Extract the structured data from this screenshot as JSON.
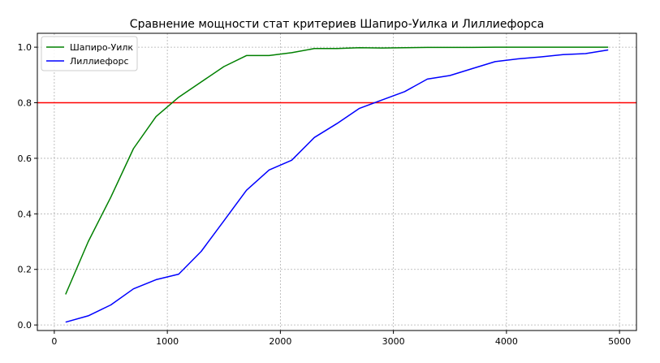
{
  "chart_data": {
    "type": "line",
    "title": "Сравнение мощности стат критериев Шапиро-Уилка и Лиллиефорса",
    "xlabel": "",
    "ylabel": "",
    "xlim": [
      -150,
      5150
    ],
    "ylim": [
      -0.02,
      1.05
    ],
    "x_ticks": [
      0,
      1000,
      2000,
      3000,
      4000,
      5000
    ],
    "y_ticks": [
      0.0,
      0.2,
      0.4,
      0.6,
      0.8,
      1.0
    ],
    "y_tick_labels": [
      "0.0",
      "0.2",
      "0.4",
      "0.6",
      "0.8",
      "1.0"
    ],
    "grid": true,
    "legend_position": "top-left",
    "series": [
      {
        "name": "Шапиро-Уилк",
        "color": "#008000",
        "x": [
          100,
          300,
          500,
          700,
          900,
          1100,
          1300,
          1500,
          1700,
          1900,
          2100,
          2300,
          2500,
          2700,
          2900,
          3100,
          3300,
          3500,
          3700,
          3900,
          4100,
          4300,
          4500,
          4700,
          4900
        ],
        "y": [
          0.11,
          0.3,
          0.46,
          0.635,
          0.75,
          0.82,
          0.875,
          0.93,
          0.97,
          0.97,
          0.98,
          0.995,
          0.995,
          0.998,
          0.997,
          0.998,
          0.999,
          0.999,
          0.999,
          1.0,
          1.0,
          1.0,
          1.0,
          1.0,
          1.0
        ]
      },
      {
        "name": "Лиллиефорс",
        "color": "#0000ff",
        "x": [
          100,
          300,
          500,
          700,
          900,
          1100,
          1300,
          1500,
          1700,
          1900,
          2100,
          2300,
          2500,
          2700,
          2900,
          3100,
          3300,
          3500,
          3700,
          3900,
          4100,
          4300,
          4500,
          4700,
          4900
        ],
        "y": [
          0.01,
          0.033,
          0.072,
          0.13,
          0.163,
          0.183,
          0.265,
          0.375,
          0.485,
          0.558,
          0.593,
          0.675,
          0.725,
          0.78,
          0.81,
          0.84,
          0.885,
          0.898,
          0.923,
          0.948,
          0.958,
          0.965,
          0.973,
          0.977,
          0.99
        ]
      }
    ],
    "reference_lines": [
      {
        "axis": "y",
        "value": 0.8,
        "color": "#ff0000"
      }
    ]
  }
}
